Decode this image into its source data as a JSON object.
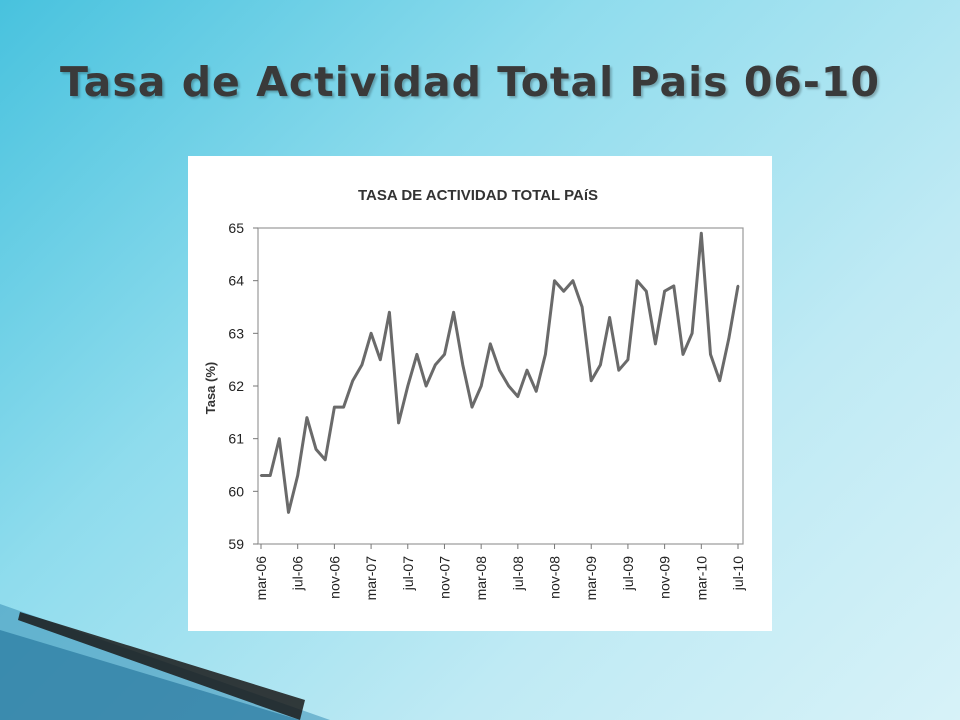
{
  "slide": {
    "title": "Tasa de Actividad Total Pais 06-10"
  },
  "colors": {
    "background": "#8fdced",
    "title": "#3a3a3a",
    "line": "#6a6a6a"
  },
  "chart_data": {
    "type": "line",
    "title": "TASA DE ACTIVIDAD TOTAL PAíS",
    "xlabel": "",
    "ylabel": "Tasa (%)",
    "ylim": [
      59,
      65
    ],
    "yticks": [
      "59",
      "60",
      "61",
      "62",
      "63",
      "64",
      "65"
    ],
    "xtick_labels": [
      "mar-06",
      "jul-06",
      "nov-06",
      "mar-07",
      "jul-07",
      "nov-07",
      "mar-08",
      "jul-08",
      "nov-08",
      "mar-09",
      "jul-09",
      "nov-09",
      "mar-10",
      "jul-10"
    ],
    "grid": false,
    "legend": "none",
    "series": [
      {
        "values": [
          60.3,
          60.3,
          61.0,
          59.6,
          60.3,
          61.4,
          60.8,
          60.6,
          61.6,
          61.6,
          62.1,
          62.4,
          63.0,
          62.5,
          63.4,
          61.3,
          62.0,
          62.6,
          62.0,
          62.4,
          62.6,
          63.4,
          62.4,
          61.6,
          62.0,
          62.8,
          62.3,
          62.0,
          61.8,
          62.3,
          61.9,
          62.6,
          64.0,
          63.8,
          64.0,
          63.5,
          62.1,
          62.4,
          63.3,
          62.3,
          62.5,
          64.0,
          63.8,
          62.8,
          63.8,
          63.9,
          62.6,
          63.0,
          64.9,
          62.6,
          62.1,
          62.9,
          63.9
        ]
      }
    ]
  }
}
